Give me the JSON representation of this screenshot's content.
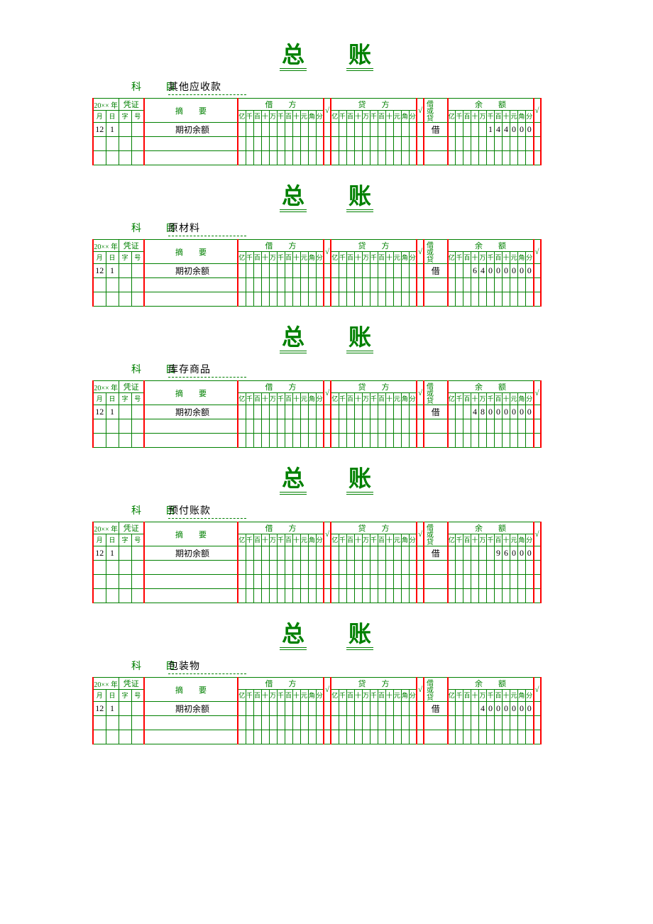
{
  "title_chars": [
    "总",
    "账"
  ],
  "colors": {
    "green": "#008000",
    "red": "#ff0000",
    "black": "#000000",
    "bg": "#ffffff"
  },
  "labels": {
    "subject": "科　目",
    "year_prefix": "20××",
    "year_suffix": "年",
    "voucher": "凭证",
    "summary": "摘　　要",
    "debit": "借　　方",
    "credit": "贷　　方",
    "balance": "余　　额",
    "drcr_col": "借或贷",
    "month": "月",
    "day": "日",
    "zi": "字",
    "hao": "号",
    "check": "√",
    "digit_units": [
      "亿",
      "千",
      "百",
      "十",
      "万",
      "千",
      "百",
      "十",
      "元",
      "角",
      "分"
    ]
  },
  "ledgers": [
    {
      "subject": "其他应收款",
      "rows": [
        {
          "month": "12",
          "day": "1",
          "zi": "",
          "hao": "",
          "summary": "期初余额",
          "debit": [
            "",
            "",
            "",
            "",
            "",
            "",
            "",
            "",
            "",
            "",
            ""
          ],
          "credit": [
            "",
            "",
            "",
            "",
            "",
            "",
            "",
            "",
            "",
            "",
            ""
          ],
          "drcr": "借",
          "balance": [
            "",
            "",
            "",
            "",
            "",
            "1",
            "4",
            "4",
            "0",
            "0",
            "0"
          ]
        },
        {
          "month": "",
          "day": "",
          "zi": "",
          "hao": "",
          "summary": "",
          "debit": [
            "",
            "",
            "",
            "",
            "",
            "",
            "",
            "",
            "",
            "",
            ""
          ],
          "credit": [
            "",
            "",
            "",
            "",
            "",
            "",
            "",
            "",
            "",
            "",
            ""
          ],
          "drcr": "",
          "balance": [
            "",
            "",
            "",
            "",
            "",
            "",
            "",
            "",
            "",
            "",
            ""
          ]
        },
        {
          "month": "",
          "day": "",
          "zi": "",
          "hao": "",
          "summary": "",
          "debit": [
            "",
            "",
            "",
            "",
            "",
            "",
            "",
            "",
            "",
            "",
            ""
          ],
          "credit": [
            "",
            "",
            "",
            "",
            "",
            "",
            "",
            "",
            "",
            "",
            ""
          ],
          "drcr": "",
          "balance": [
            "",
            "",
            "",
            "",
            "",
            "",
            "",
            "",
            "",
            "",
            ""
          ]
        }
      ]
    },
    {
      "subject": "原材料",
      "rows": [
        {
          "month": "12",
          "day": "1",
          "zi": "",
          "hao": "",
          "summary": "期初余额",
          "debit": [
            "",
            "",
            "",
            "",
            "",
            "",
            "",
            "",
            "",
            "",
            ""
          ],
          "credit": [
            "",
            "",
            "",
            "",
            "",
            "",
            "",
            "",
            "",
            "",
            ""
          ],
          "drcr": "借",
          "balance": [
            "",
            "",
            "",
            "6",
            "4",
            "0",
            "0",
            "0",
            "0",
            "0",
            "0"
          ]
        },
        {
          "month": "",
          "day": "",
          "zi": "",
          "hao": "",
          "summary": "",
          "debit": [
            "",
            "",
            "",
            "",
            "",
            "",
            "",
            "",
            "",
            "",
            ""
          ],
          "credit": [
            "",
            "",
            "",
            "",
            "",
            "",
            "",
            "",
            "",
            "",
            ""
          ],
          "drcr": "",
          "balance": [
            "",
            "",
            "",
            "",
            "",
            "",
            "",
            "",
            "",
            "",
            ""
          ]
        },
        {
          "month": "",
          "day": "",
          "zi": "",
          "hao": "",
          "summary": "",
          "debit": [
            "",
            "",
            "",
            "",
            "",
            "",
            "",
            "",
            "",
            "",
            ""
          ],
          "credit": [
            "",
            "",
            "",
            "",
            "",
            "",
            "",
            "",
            "",
            "",
            ""
          ],
          "drcr": "",
          "balance": [
            "",
            "",
            "",
            "",
            "",
            "",
            "",
            "",
            "",
            "",
            ""
          ]
        }
      ]
    },
    {
      "subject": "库存商品",
      "rows": [
        {
          "month": "12",
          "day": "1",
          "zi": "",
          "hao": "",
          "summary": "期初余额",
          "debit": [
            "",
            "",
            "",
            "",
            "",
            "",
            "",
            "",
            "",
            "",
            ""
          ],
          "credit": [
            "",
            "",
            "",
            "",
            "",
            "",
            "",
            "",
            "",
            "",
            ""
          ],
          "drcr": "借",
          "balance": [
            "",
            "",
            "",
            "4",
            "8",
            "0",
            "0",
            "0",
            "0",
            "0",
            "0"
          ]
        },
        {
          "month": "",
          "day": "",
          "zi": "",
          "hao": "",
          "summary": "",
          "debit": [
            "",
            "",
            "",
            "",
            "",
            "",
            "",
            "",
            "",
            "",
            ""
          ],
          "credit": [
            "",
            "",
            "",
            "",
            "",
            "",
            "",
            "",
            "",
            "",
            ""
          ],
          "drcr": "",
          "balance": [
            "",
            "",
            "",
            "",
            "",
            "",
            "",
            "",
            "",
            "",
            ""
          ]
        },
        {
          "month": "",
          "day": "",
          "zi": "",
          "hao": "",
          "summary": "",
          "debit": [
            "",
            "",
            "",
            "",
            "",
            "",
            "",
            "",
            "",
            "",
            ""
          ],
          "credit": [
            "",
            "",
            "",
            "",
            "",
            "",
            "",
            "",
            "",
            "",
            ""
          ],
          "drcr": "",
          "balance": [
            "",
            "",
            "",
            "",
            "",
            "",
            "",
            "",
            "",
            "",
            ""
          ]
        }
      ]
    },
    {
      "subject": "预付账款",
      "rows": [
        {
          "month": "12",
          "day": "1",
          "zi": "",
          "hao": "",
          "summary": "期初余额",
          "debit": [
            "",
            "",
            "",
            "",
            "",
            "",
            "",
            "",
            "",
            "",
            ""
          ],
          "credit": [
            "",
            "",
            "",
            "",
            "",
            "",
            "",
            "",
            "",
            "",
            ""
          ],
          "drcr": "借",
          "balance": [
            "",
            "",
            "",
            "",
            "",
            "",
            "9",
            "6",
            "0",
            "0",
            "0"
          ]
        },
        {
          "month": "",
          "day": "",
          "zi": "",
          "hao": "",
          "summary": "",
          "debit": [
            "",
            "",
            "",
            "",
            "",
            "",
            "",
            "",
            "",
            "",
            ""
          ],
          "credit": [
            "",
            "",
            "",
            "",
            "",
            "",
            "",
            "",
            "",
            "",
            ""
          ],
          "drcr": "",
          "balance": [
            "",
            "",
            "",
            "",
            "",
            "",
            "",
            "",
            "",
            "",
            ""
          ]
        },
        {
          "month": "",
          "day": "",
          "zi": "",
          "hao": "",
          "summary": "",
          "debit": [
            "",
            "",
            "",
            "",
            "",
            "",
            "",
            "",
            "",
            "",
            ""
          ],
          "credit": [
            "",
            "",
            "",
            "",
            "",
            "",
            "",
            "",
            "",
            "",
            ""
          ],
          "drcr": "",
          "balance": [
            "",
            "",
            "",
            "",
            "",
            "",
            "",
            "",
            "",
            "",
            ""
          ]
        },
        {
          "month": "",
          "day": "",
          "zi": "",
          "hao": "",
          "summary": "",
          "debit": [
            "",
            "",
            "",
            "",
            "",
            "",
            "",
            "",
            "",
            "",
            ""
          ],
          "credit": [
            "",
            "",
            "",
            "",
            "",
            "",
            "",
            "",
            "",
            "",
            ""
          ],
          "drcr": "",
          "balance": [
            "",
            "",
            "",
            "",
            "",
            "",
            "",
            "",
            "",
            "",
            ""
          ]
        }
      ]
    },
    {
      "subject": "包装物",
      "rows": [
        {
          "month": "12",
          "day": "1",
          "zi": "",
          "hao": "",
          "summary": "期初余额",
          "debit": [
            "",
            "",
            "",
            "",
            "",
            "",
            "",
            "",
            "",
            "",
            ""
          ],
          "credit": [
            "",
            "",
            "",
            "",
            "",
            "",
            "",
            "",
            "",
            "",
            ""
          ],
          "drcr": "借",
          "balance": [
            "",
            "",
            "",
            "",
            "4",
            "0",
            "0",
            "0",
            "0",
            "0",
            "0"
          ]
        },
        {
          "month": "",
          "day": "",
          "zi": "",
          "hao": "",
          "summary": "",
          "debit": [
            "",
            "",
            "",
            "",
            "",
            "",
            "",
            "",
            "",
            "",
            ""
          ],
          "credit": [
            "",
            "",
            "",
            "",
            "",
            "",
            "",
            "",
            "",
            "",
            ""
          ],
          "drcr": "",
          "balance": [
            "",
            "",
            "",
            "",
            "",
            "",
            "",
            "",
            "",
            "",
            ""
          ]
        },
        {
          "month": "",
          "day": "",
          "zi": "",
          "hao": "",
          "summary": "",
          "debit": [
            "",
            "",
            "",
            "",
            "",
            "",
            "",
            "",
            "",
            "",
            ""
          ],
          "credit": [
            "",
            "",
            "",
            "",
            "",
            "",
            "",
            "",
            "",
            "",
            ""
          ],
          "drcr": "",
          "balance": [
            "",
            "",
            "",
            "",
            "",
            "",
            "",
            "",
            "",
            "",
            ""
          ]
        }
      ]
    }
  ]
}
